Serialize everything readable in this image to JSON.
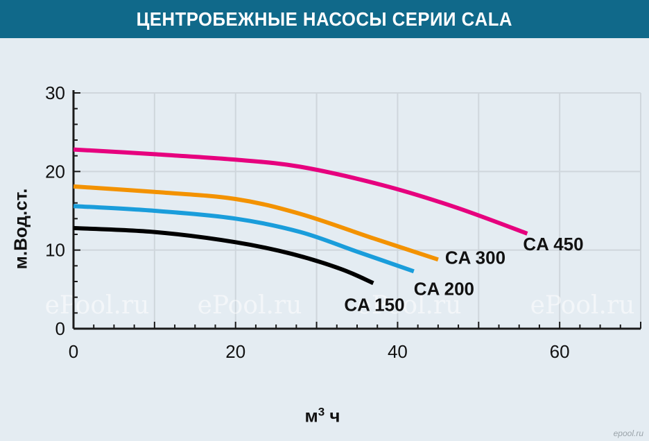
{
  "header": {
    "title": "ЦЕНТРОБЕЖНЫЕ НАСОСЫ СЕРИИ CALA"
  },
  "watermark": {
    "text": "ePool.ru",
    "footer": "epool.ru"
  },
  "colors": {
    "header_bg": "#10698a",
    "plot_bg": "#e4ecf2",
    "grid": "#cfd6dc"
  },
  "chart_data": {
    "type": "line",
    "title": "ЦЕНТРОБЕЖНЫЕ НАСОСЫ СЕРИИ CALA",
    "xlabel": "м",
    "xlabel_sup": "3",
    "xlabel_suffix": " ч",
    "ylabel": "м.Вод.ст.",
    "xlim": [
      0,
      70
    ],
    "ylim": [
      0,
      30
    ],
    "x_ticks": [
      0,
      20,
      40,
      60
    ],
    "y_ticks": [
      0,
      10,
      20,
      30
    ],
    "grid": true,
    "series": [
      {
        "name": "CA 150",
        "color": "#000000",
        "points": [
          [
            0,
            12.8
          ],
          [
            10,
            12.3
          ],
          [
            20,
            11.0
          ],
          [
            27,
            9.5
          ],
          [
            33,
            7.6
          ],
          [
            37,
            5.8
          ]
        ]
      },
      {
        "name": "CA 200",
        "color": "#1a9ddb",
        "points": [
          [
            0,
            15.6
          ],
          [
            10,
            15.0
          ],
          [
            20,
            14.0
          ],
          [
            28,
            12.3
          ],
          [
            35,
            9.8
          ],
          [
            42,
            7.3
          ]
        ]
      },
      {
        "name": "CA 300",
        "color": "#f39200",
        "points": [
          [
            0,
            18.1
          ],
          [
            10,
            17.4
          ],
          [
            20,
            16.5
          ],
          [
            28,
            14.6
          ],
          [
            37,
            11.5
          ],
          [
            45,
            8.8
          ]
        ]
      },
      {
        "name": "CA 450",
        "color": "#e6007e",
        "points": [
          [
            0,
            22.8
          ],
          [
            10,
            22.2
          ],
          [
            20,
            21.5
          ],
          [
            28,
            20.6
          ],
          [
            38,
            18.3
          ],
          [
            47,
            15.5
          ],
          [
            56,
            12.1
          ]
        ]
      }
    ]
  }
}
